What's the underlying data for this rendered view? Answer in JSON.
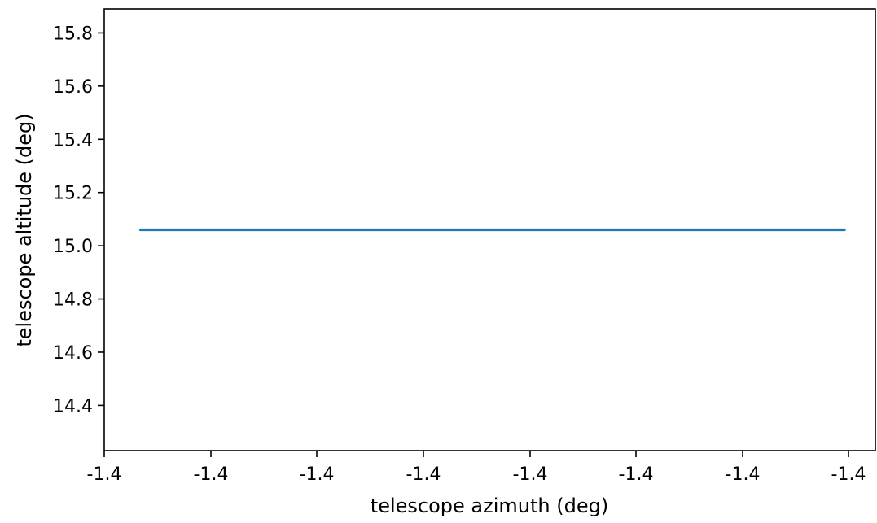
{
  "chart_data": {
    "type": "line",
    "title": "",
    "xlabel": "telescope azimuth (deg)",
    "ylabel": "telescope altitude (deg)",
    "x_tick_labels": [
      "-1.4",
      "-1.4",
      "-1.4",
      "-1.4",
      "-1.4",
      "-1.4",
      "-1.4",
      "-1.4"
    ],
    "y_ticks": [
      14.4,
      14.6,
      14.8,
      15.0,
      15.2,
      15.4,
      15.6,
      15.8
    ],
    "y_tick_labels": [
      "14.4",
      "14.6",
      "14.8",
      "15.0",
      "15.2",
      "15.4",
      "15.6",
      "15.8"
    ],
    "xlim": [
      0,
      1
    ],
    "ylim": [
      14.23,
      15.89
    ],
    "grid": false,
    "series": [
      {
        "color": "#1f77b4",
        "x": [
          0.047,
          0.2,
          0.4,
          0.6,
          0.8,
          0.933,
          0.96
        ],
        "y": [
          15.06,
          15.06,
          15.06,
          15.06,
          15.06,
          15.06,
          15.06
        ]
      }
    ]
  }
}
